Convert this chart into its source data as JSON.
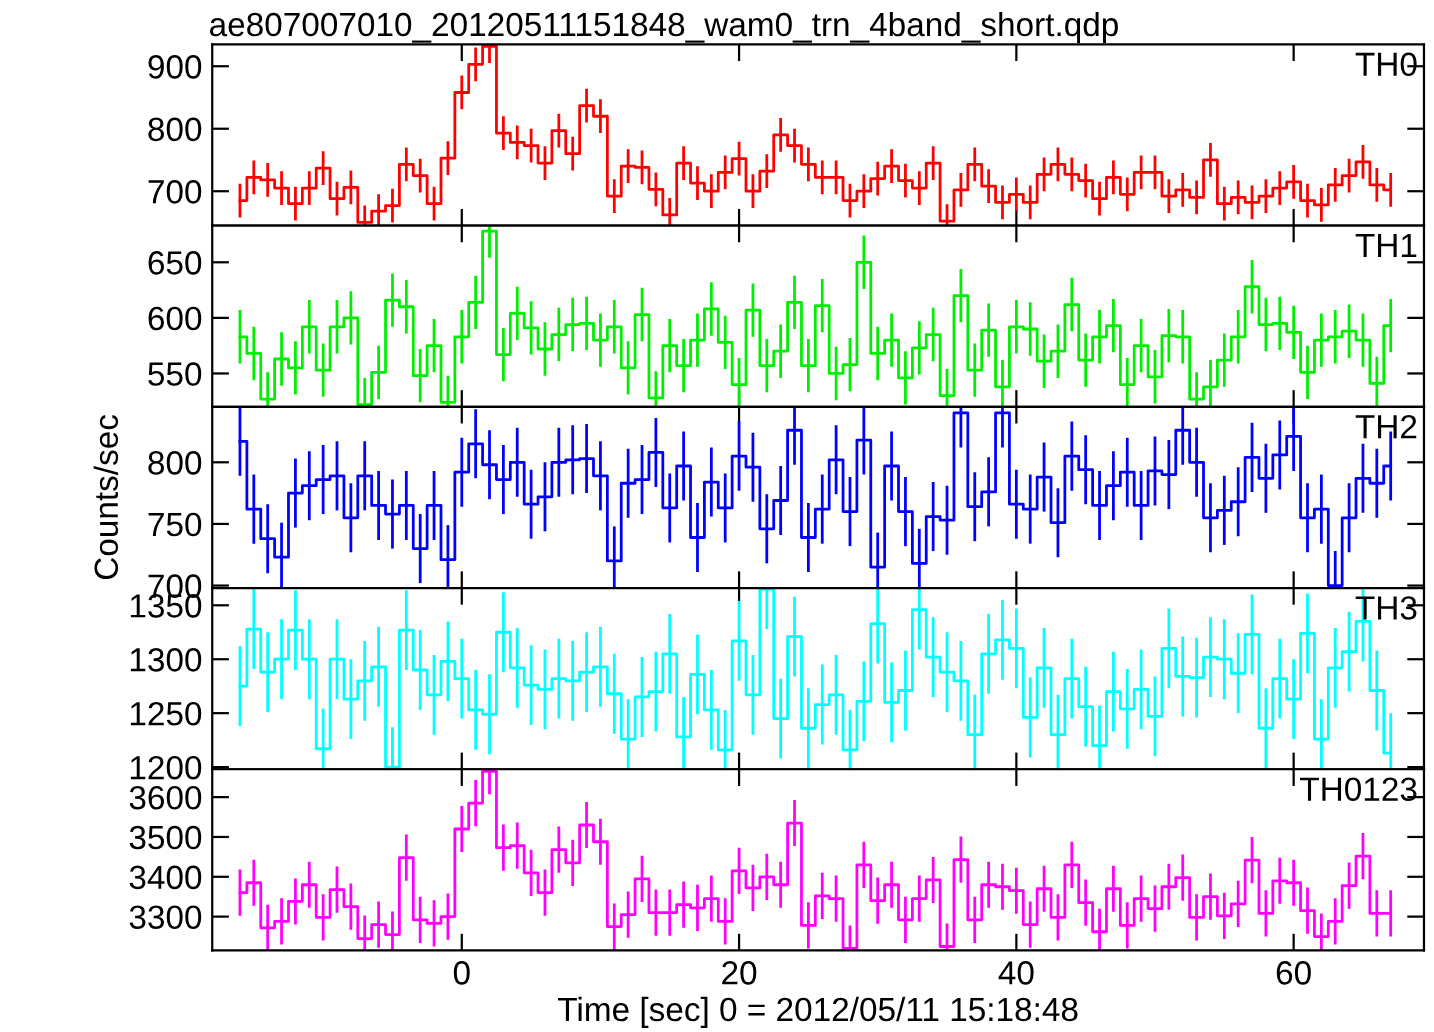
{
  "chart_data": [
    {
      "type": "step",
      "title": "ae807007010_20120511151848_wam0_trn_4band_short.qdp",
      "annotations": [
        "TH0"
      ],
      "color": "#ff0000",
      "tick_labels": "y",
      "xlim": [
        -18,
        69.4
      ],
      "xticks": [
        {
          "value": 0,
          "label": null
        },
        {
          "value": 20,
          "label": null
        },
        {
          "value": 40,
          "label": null
        },
        {
          "value": 60,
          "label": null
        }
      ],
      "ylim": [
        645,
        935
      ],
      "yticks": [
        700,
        800,
        900
      ],
      "x": [
        -16,
        -15,
        -14,
        -13,
        -12,
        -11,
        -10,
        -9,
        -8,
        -7,
        -6,
        -5,
        -4,
        -3,
        -2,
        -1,
        0,
        1,
        2,
        3,
        4,
        5,
        6,
        7,
        8,
        9,
        10,
        11,
        12,
        13,
        14,
        15,
        16,
        17,
        18,
        19,
        20,
        21,
        22,
        23,
        24,
        25,
        26,
        27,
        28,
        29,
        30,
        31,
        32,
        33,
        34,
        35,
        36,
        37,
        38,
        39,
        40,
        41,
        42,
        43,
        44,
        45,
        46,
        47,
        48,
        49,
        50,
        51,
        52,
        53,
        54,
        55,
        56,
        57,
        58,
        59,
        60,
        61,
        62,
        63,
        64,
        65,
        66,
        67
      ],
      "values": [
        685,
        722,
        718,
        705,
        680,
        705,
        737,
        688,
        706,
        650,
        668,
        677,
        743,
        725,
        680,
        753,
        858,
        903,
        932,
        793,
        778,
        773,
        745,
        797,
        760,
        837,
        820,
        692,
        740,
        738,
        703,
        662,
        745,
        713,
        700,
        730,
        752,
        700,
        732,
        790,
        773,
        743,
        722,
        722,
        685,
        700,
        720,
        740,
        717,
        705,
        745,
        652,
        702,
        743,
        708,
        682,
        695,
        682,
        727,
        743,
        727,
        717,
        688,
        722,
        695,
        730,
        730,
        692,
        702,
        690,
        750,
        680,
        690,
        682,
        692,
        705,
        715,
        685,
        678,
        710,
        725,
        747,
        710,
        702
      ],
      "errors": [
        27,
        27,
        27,
        27,
        27,
        27,
        27,
        27,
        27,
        27,
        27,
        27,
        27,
        27,
        27,
        27,
        27,
        27,
        27,
        27,
        27,
        27,
        27,
        27,
        27,
        27,
        27,
        27,
        27,
        27,
        27,
        27,
        27,
        27,
        27,
        27,
        27,
        27,
        27,
        27,
        27,
        27,
        27,
        27,
        27,
        27,
        27,
        27,
        27,
        27,
        27,
        27,
        27,
        27,
        27,
        27,
        27,
        27,
        27,
        27,
        27,
        27,
        27,
        27,
        27,
        27,
        27,
        27,
        27,
        27,
        27,
        27,
        27,
        27,
        27,
        27,
        27,
        27,
        27,
        27,
        27,
        27,
        27,
        27
      ]
    },
    {
      "type": "step",
      "annotations": [
        "TH1"
      ],
      "color": "#00ee00",
      "tick_labels": "y",
      "xlim": [
        -18,
        69.4
      ],
      "xticks": [
        {
          "value": 0,
          "label": null
        },
        {
          "value": 20,
          "label": null
        },
        {
          "value": 40,
          "label": null
        },
        {
          "value": 60,
          "label": null
        }
      ],
      "ylim": [
        520,
        683
      ],
      "yticks": [
        550,
        600,
        650
      ],
      "x": [
        -16,
        -15,
        -14,
        -13,
        -12,
        -11,
        -10,
        -9,
        -8,
        -7,
        -6,
        -5,
        -4,
        -3,
        -2,
        -1,
        0,
        1,
        2,
        3,
        4,
        5,
        6,
        7,
        8,
        9,
        10,
        11,
        12,
        13,
        14,
        15,
        16,
        17,
        18,
        19,
        20,
        21,
        22,
        23,
        24,
        25,
        26,
        27,
        28,
        29,
        30,
        31,
        32,
        33,
        34,
        35,
        36,
        37,
        38,
        39,
        40,
        41,
        42,
        43,
        44,
        45,
        46,
        47,
        48,
        49,
        50,
        51,
        52,
        53,
        54,
        55,
        56,
        57,
        58,
        59,
        60,
        61,
        62,
        63,
        64,
        65,
        66,
        67
      ],
      "values": [
        583,
        568,
        527,
        563,
        555,
        592,
        553,
        592,
        600,
        522,
        551,
        616,
        610,
        548,
        575,
        524,
        583,
        614,
        678,
        567,
        604,
        591,
        572,
        585,
        594,
        595,
        580,
        592,
        555,
        603,
        528,
        575,
        557,
        580,
        608,
        578,
        540,
        607,
        557,
        570,
        614,
        557,
        611,
        550,
        558,
        650,
        568,
        580,
        546,
        573,
        585,
        530,
        620,
        553,
        589,
        538,
        592,
        590,
        561,
        570,
        612,
        562,
        583,
        593,
        540,
        575,
        547,
        584,
        583,
        527,
        538,
        562,
        583,
        628,
        594,
        595,
        587,
        551,
        580,
        583,
        588,
        580,
        541,
        593
      ],
      "errors": [
        24,
        24,
        24,
        24,
        24,
        24,
        24,
        24,
        24,
        24,
        24,
        24,
        24,
        24,
        24,
        24,
        24,
        24,
        24,
        24,
        24,
        24,
        24,
        24,
        24,
        24,
        24,
        24,
        24,
        24,
        24,
        24,
        24,
        24,
        24,
        24,
        24,
        24,
        24,
        24,
        24,
        24,
        24,
        24,
        24,
        24,
        24,
        24,
        24,
        24,
        24,
        24,
        24,
        24,
        24,
        24,
        24,
        24,
        24,
        24,
        24,
        24,
        24,
        24,
        24,
        24,
        24,
        24,
        24,
        24,
        24,
        24,
        24,
        24,
        24,
        24,
        24,
        24,
        24,
        24,
        24,
        24,
        24,
        24
      ]
    },
    {
      "type": "step",
      "annotations": [
        "TH2"
      ],
      "ylabel": "Counts/sec",
      "color": "#0000ff",
      "tick_labels": "y",
      "xlim": [
        -18,
        69.4
      ],
      "xticks": [
        {
          "value": 0,
          "label": null
        },
        {
          "value": 20,
          "label": null
        },
        {
          "value": 40,
          "label": null
        },
        {
          "value": 60,
          "label": null
        }
      ],
      "ylim": [
        698,
        845
      ],
      "yticks": [
        700,
        750,
        800
      ],
      "x": [
        -16,
        -15,
        -14,
        -13,
        -12,
        -11,
        -10,
        -9,
        -8,
        -7,
        -6,
        -5,
        -4,
        -3,
        -2,
        -1,
        0,
        1,
        2,
        3,
        4,
        5,
        6,
        7,
        8,
        9,
        10,
        11,
        12,
        13,
        14,
        15,
        16,
        17,
        18,
        19,
        20,
        21,
        22,
        23,
        24,
        25,
        26,
        27,
        28,
        29,
        30,
        31,
        32,
        33,
        34,
        35,
        36,
        37,
        38,
        39,
        40,
        41,
        42,
        43,
        44,
        45,
        46,
        47,
        48,
        49,
        50,
        51,
        52,
        53,
        54,
        55,
        56,
        57,
        58,
        59,
        60,
        61,
        62,
        63,
        64,
        65,
        66,
        67
      ],
      "values": [
        817,
        762,
        738,
        723,
        775,
        781,
        786,
        789,
        755,
        789,
        765,
        758,
        765,
        730,
        765,
        721,
        792,
        815,
        798,
        786,
        800,
        766,
        772,
        800,
        802,
        803,
        789,
        720,
        783,
        786,
        808,
        763,
        797,
        739,
        784,
        763,
        805,
        796,
        746,
        769,
        826,
        739,
        762,
        802,
        760,
        818,
        715,
        797,
        760,
        718,
        756,
        753,
        840,
        764,
        776,
        840,
        766,
        762,
        788,
        751,
        805,
        794,
        765,
        781,
        792,
        765,
        793,
        790,
        826,
        800,
        755,
        761,
        768,
        804,
        787,
        806,
        821,
        755,
        762,
        700,
        755,
        787,
        783,
        797
      ],
      "errors": [
        28,
        28,
        28,
        28,
        28,
        28,
        28,
        28,
        28,
        28,
        28,
        28,
        28,
        28,
        28,
        28,
        28,
        28,
        28,
        28,
        28,
        28,
        28,
        28,
        28,
        28,
        28,
        28,
        28,
        28,
        28,
        28,
        28,
        28,
        28,
        28,
        28,
        28,
        28,
        28,
        28,
        28,
        28,
        28,
        28,
        28,
        28,
        28,
        28,
        28,
        28,
        28,
        28,
        28,
        28,
        28,
        28,
        28,
        28,
        28,
        28,
        28,
        28,
        28,
        28,
        28,
        28,
        28,
        28,
        28,
        28,
        28,
        28,
        28,
        28,
        28,
        28,
        28,
        28,
        28,
        28,
        28,
        28,
        28
      ]
    },
    {
      "type": "step",
      "annotations": [
        "TH3"
      ],
      "color": "#00ffff",
      "tick_labels": "y",
      "xlim": [
        -18,
        69.4
      ],
      "xticks": [
        {
          "value": 0,
          "label": null
        },
        {
          "value": 20,
          "label": null
        },
        {
          "value": 40,
          "label": null
        },
        {
          "value": 60,
          "label": null
        }
      ],
      "ylim": [
        1198,
        1366
      ],
      "yticks": [
        1200,
        1250,
        1300,
        1350
      ],
      "x": [
        -16,
        -15,
        -14,
        -13,
        -12,
        -11,
        -10,
        -9,
        -8,
        -7,
        -6,
        -5,
        -4,
        -3,
        -2,
        -1,
        0,
        1,
        2,
        3,
        4,
        5,
        6,
        7,
        8,
        9,
        10,
        11,
        12,
        13,
        14,
        15,
        16,
        17,
        18,
        19,
        20,
        21,
        22,
        23,
        24,
        25,
        26,
        27,
        28,
        29,
        30,
        31,
        32,
        33,
        34,
        35,
        36,
        37,
        38,
        39,
        40,
        41,
        42,
        43,
        44,
        45,
        46,
        47,
        48,
        49,
        50,
        51,
        52,
        53,
        54,
        55,
        56,
        57,
        58,
        59,
        60,
        61,
        62,
        63,
        64,
        65,
        66,
        67
      ],
      "values": [
        1275,
        1328,
        1288,
        1300,
        1327,
        1300,
        1217,
        1300,
        1263,
        1280,
        1293,
        1200,
        1327,
        1290,
        1267,
        1298,
        1282,
        1253,
        1249,
        1325,
        1292,
        1276,
        1272,
        1282,
        1280,
        1288,
        1293,
        1268,
        1226,
        1265,
        1270,
        1305,
        1228,
        1286,
        1253,
        1216,
        1317,
        1267,
        1365,
        1245,
        1321,
        1236,
        1258,
        1267,
        1216,
        1261,
        1333,
        1260,
        1271,
        1346,
        1302,
        1288,
        1280,
        1230,
        1305,
        1318,
        1310,
        1246,
        1292,
        1230,
        1282,
        1256,
        1220,
        1270,
        1254,
        1272,
        1247,
        1310,
        1284,
        1283,
        1302,
        1300,
        1287,
        1323,
        1236,
        1282,
        1263,
        1324,
        1226,
        1292,
        1307,
        1335,
        1271,
        1213
      ],
      "errors": [
        37,
        37,
        37,
        37,
        37,
        37,
        37,
        37,
        37,
        37,
        37,
        37,
        37,
        37,
        37,
        37,
        37,
        37,
        37,
        37,
        37,
        37,
        37,
        37,
        37,
        37,
        37,
        37,
        37,
        37,
        37,
        37,
        37,
        37,
        37,
        37,
        37,
        37,
        37,
        37,
        37,
        37,
        37,
        37,
        37,
        37,
        37,
        37,
        37,
        37,
        37,
        37,
        37,
        37,
        37,
        37,
        37,
        37,
        37,
        37,
        37,
        37,
        37,
        37,
        37,
        37,
        37,
        37,
        37,
        37,
        37,
        37,
        37,
        37,
        37,
        37,
        37,
        37,
        37,
        37,
        37,
        37,
        37,
        37
      ]
    },
    {
      "type": "step",
      "annotations": [
        "TH0123"
      ],
      "xlabel": "Time [sec] 0 = 2012/05/11 15:18:48",
      "color": "#ff00ff",
      "xlim": [
        -18,
        69.4
      ],
      "xticks": [
        0,
        20,
        40,
        60
      ],
      "ylim": [
        3215,
        3670
      ],
      "yticks": [
        3300,
        3400,
        3500,
        3600
      ],
      "x": [
        -16,
        -15,
        -14,
        -13,
        -12,
        -11,
        -10,
        -9,
        -8,
        -7,
        -6,
        -5,
        -4,
        -3,
        -2,
        -1,
        0,
        1,
        2,
        3,
        4,
        5,
        6,
        7,
        8,
        9,
        10,
        11,
        12,
        13,
        14,
        15,
        16,
        17,
        18,
        19,
        20,
        21,
        22,
        23,
        24,
        25,
        26,
        27,
        28,
        29,
        30,
        31,
        32,
        33,
        34,
        35,
        36,
        37,
        38,
        39,
        40,
        41,
        42,
        43,
        44,
        45,
        46,
        47,
        48,
        49,
        50,
        51,
        52,
        53,
        54,
        55,
        56,
        57,
        58,
        59,
        60,
        61,
        62,
        63,
        64,
        65,
        66,
        67
      ],
      "values": [
        3360,
        3385,
        3272,
        3288,
        3338,
        3380,
        3298,
        3368,
        3325,
        3245,
        3280,
        3255,
        3448,
        3292,
        3283,
        3300,
        3520,
        3585,
        3665,
        3473,
        3478,
        3410,
        3360,
        3468,
        3435,
        3530,
        3488,
        3275,
        3305,
        3395,
        3310,
        3310,
        3330,
        3322,
        3345,
        3288,
        3415,
        3372,
        3400,
        3380,
        3535,
        3278,
        3352,
        3345,
        3220,
        3430,
        3340,
        3380,
        3292,
        3345,
        3392,
        3225,
        3443,
        3292,
        3380,
        3375,
        3365,
        3280,
        3370,
        3298,
        3430,
        3335,
        3262,
        3370,
        3278,
        3345,
        3320,
        3375,
        3398,
        3298,
        3350,
        3302,
        3332,
        3442,
        3308,
        3390,
        3385,
        3315,
        3250,
        3288,
        3378,
        3452,
        3308,
        3308
      ],
      "errors": [
        58,
        58,
        58,
        58,
        58,
        58,
        58,
        58,
        58,
        58,
        58,
        58,
        58,
        58,
        58,
        58,
        58,
        58,
        58,
        58,
        58,
        58,
        58,
        58,
        58,
        58,
        58,
        58,
        58,
        58,
        58,
        58,
        58,
        58,
        58,
        58,
        58,
        58,
        58,
        58,
        58,
        58,
        58,
        58,
        58,
        58,
        58,
        58,
        58,
        58,
        58,
        58,
        58,
        58,
        58,
        58,
        58,
        58,
        58,
        58,
        58,
        58,
        58,
        58,
        58,
        58,
        58,
        58,
        58,
        58,
        58,
        58,
        58,
        58,
        58,
        58,
        58,
        58,
        58,
        58,
        58,
        58,
        58,
        58
      ]
    }
  ]
}
